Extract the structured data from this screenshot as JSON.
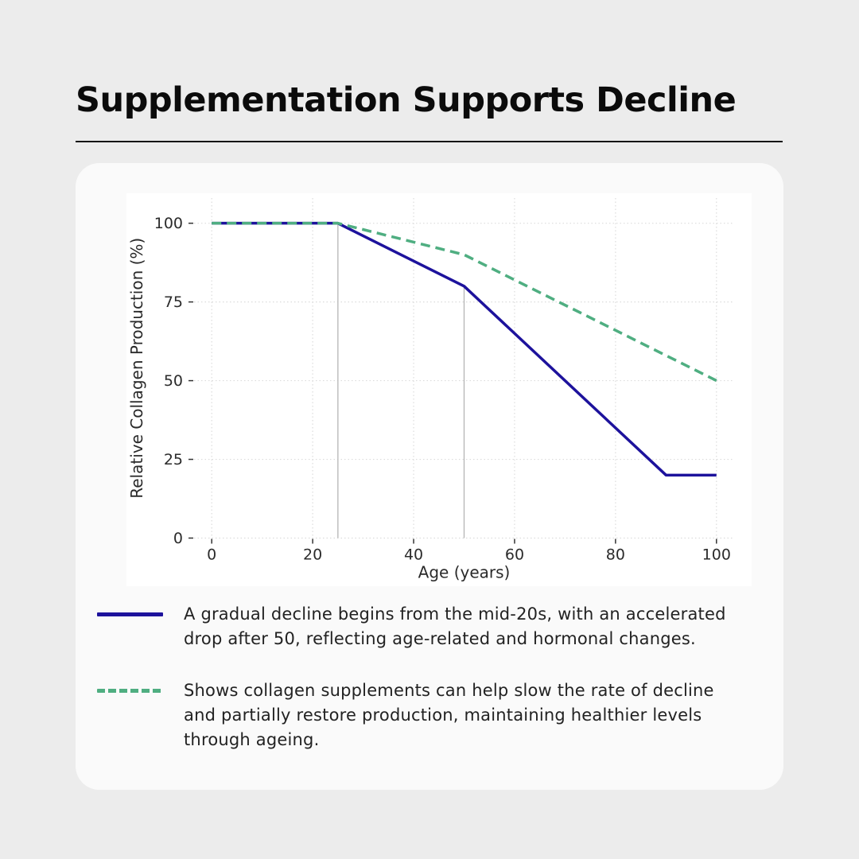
{
  "page": {
    "title": "Supplementation Supports Decline"
  },
  "colors": {
    "page_background": "#ececec",
    "card_background": "#fafafa",
    "figure_background": "#ffffff",
    "grid": "#dcdcdc",
    "marker_line": "#b5b5b5",
    "tick_text": "#2b2b2b",
    "natural_decline": "#1d129c",
    "with_supplementation": "#4fae81"
  },
  "chart_data": {
    "type": "line",
    "title": "",
    "xlabel": "Age (years)",
    "ylabel": "Relative Collagen Production (%)",
    "xlim": [
      -3.5,
      103.5
    ],
    "ylim": [
      0,
      108
    ],
    "x_ticks": [
      0,
      20,
      40,
      60,
      80,
      100
    ],
    "y_ticks": [
      0,
      25,
      50,
      75,
      100
    ],
    "grid": true,
    "grid_style": "dotted",
    "legend_position": "below-chart",
    "marker_lines": [
      {
        "x": 25,
        "y_top": 100
      },
      {
        "x": 50,
        "y_top": 80
      }
    ],
    "series": [
      {
        "name": "natural-decline",
        "color": "#1d129c",
        "style": "solid",
        "points": [
          [
            0,
            100
          ],
          [
            25,
            100
          ],
          [
            50,
            80
          ],
          [
            90,
            20
          ],
          [
            100,
            20
          ]
        ]
      },
      {
        "name": "with-supplementation",
        "color": "#4fae81",
        "style": "dashed",
        "points": [
          [
            0,
            100
          ],
          [
            25,
            100
          ],
          [
            35,
            96
          ],
          [
            50,
            90
          ],
          [
            100,
            50
          ]
        ]
      }
    ]
  },
  "legend": {
    "items": [
      {
        "series": "natural-decline",
        "color": "#1d129c",
        "style": "solid",
        "lines": "A gradual decline begins from the mid-20s, with an accelerated\ndrop after 50, reflecting age-related and hormonal changes."
      },
      {
        "series": "with-supplementation",
        "color": "#4fae81",
        "style": "dashed",
        "lines": "Shows collagen supplements can help slow the rate of decline\nand partially restore production, maintaining healthier levels\nthrough ageing."
      }
    ]
  }
}
